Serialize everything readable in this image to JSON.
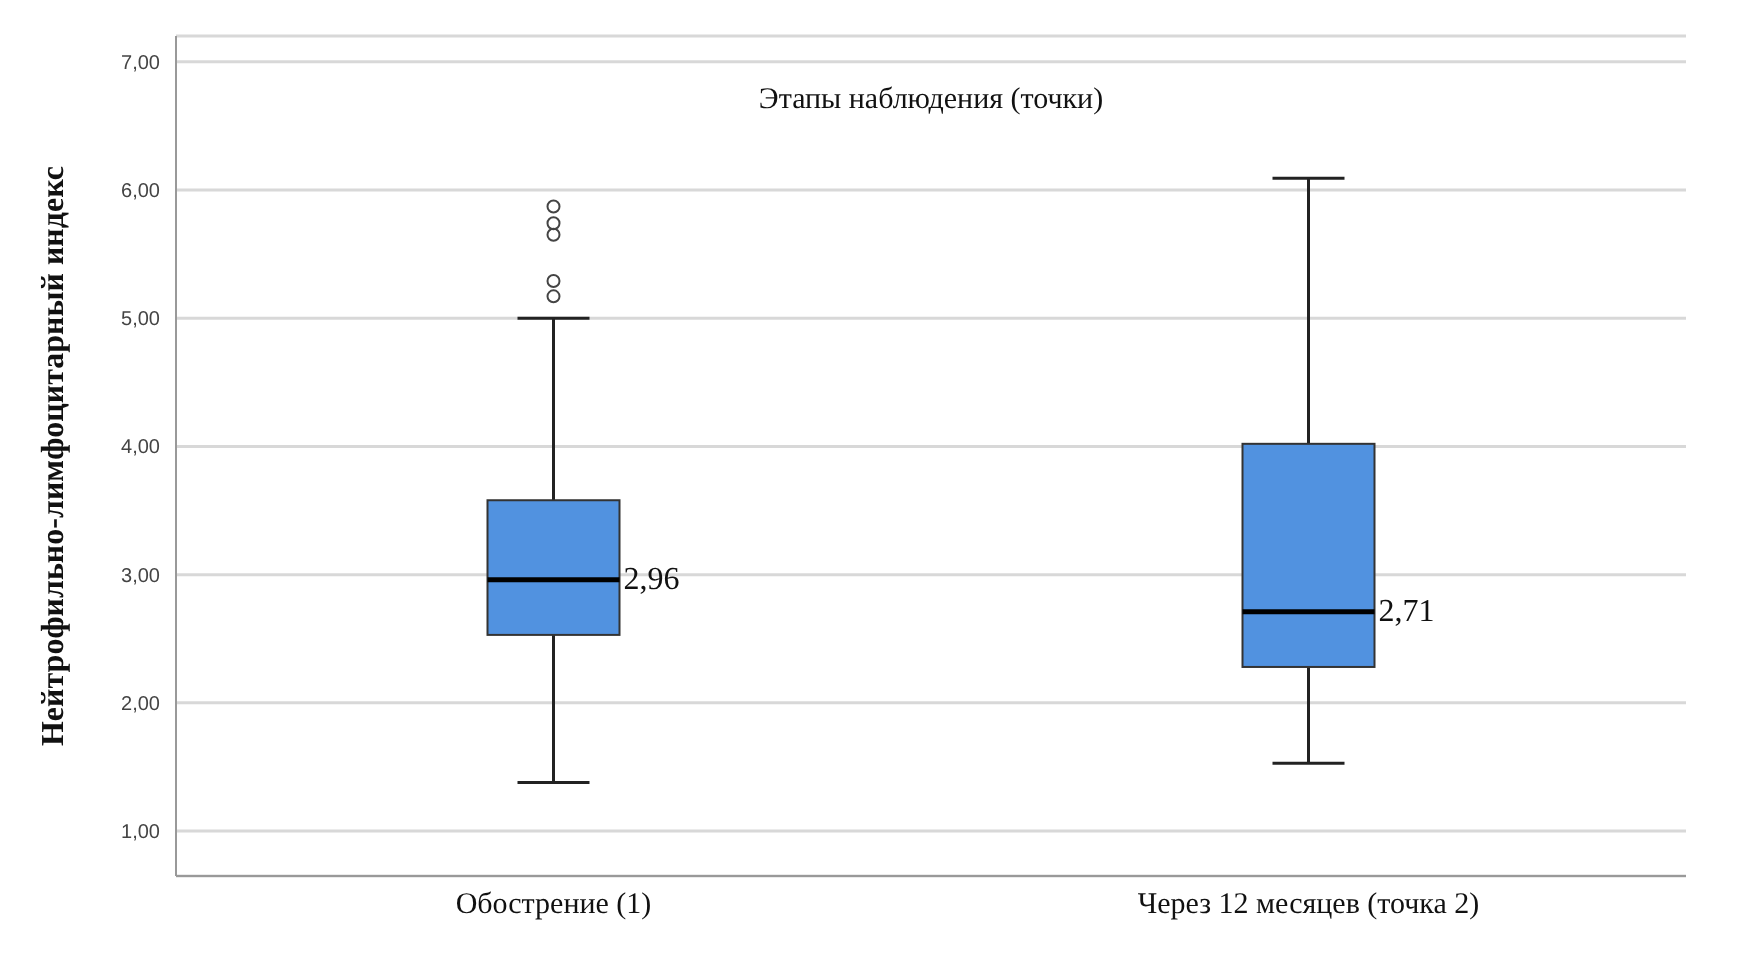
{
  "chart_data": {
    "type": "box",
    "title": "Этапы наблюдения (точки)",
    "ylabel": "Нейтрофильно-лимфоцитарный индекс",
    "categories": [
      "Обострение (1)",
      "Через 12 месяцев (точка 2)"
    ],
    "color": "#5192e0",
    "boxes": [
      {
        "low": 1.38,
        "q1": 2.53,
        "median": 2.96,
        "q3": 3.58,
        "high": 5.0,
        "outliers": [
          5.87,
          5.74,
          5.65,
          5.29,
          5.17
        ]
      },
      {
        "low": 1.53,
        "q1": 2.28,
        "median": 2.71,
        "q3": 4.02,
        "high": 6.09
      }
    ],
    "annotations": [
      {
        "text": "2,96",
        "x": "Обострение (1)",
        "y": 2.96
      },
      {
        "text": "2,71",
        "x": "Через 12 месяцев (точка 2)",
        "y": 2.71
      }
    ],
    "ylim": [
      0.65,
      7.2
    ],
    "yticks": [
      {
        "value": 1,
        "label": "1,00"
      },
      {
        "value": 2,
        "label": "2,00"
      },
      {
        "value": 3,
        "label": "3,00"
      },
      {
        "value": 4,
        "label": "4,00"
      },
      {
        "value": 5,
        "label": "5,00"
      },
      {
        "value": 6,
        "label": "6,00"
      },
      {
        "value": 7,
        "label": "7,00"
      }
    ],
    "grid": "y"
  }
}
